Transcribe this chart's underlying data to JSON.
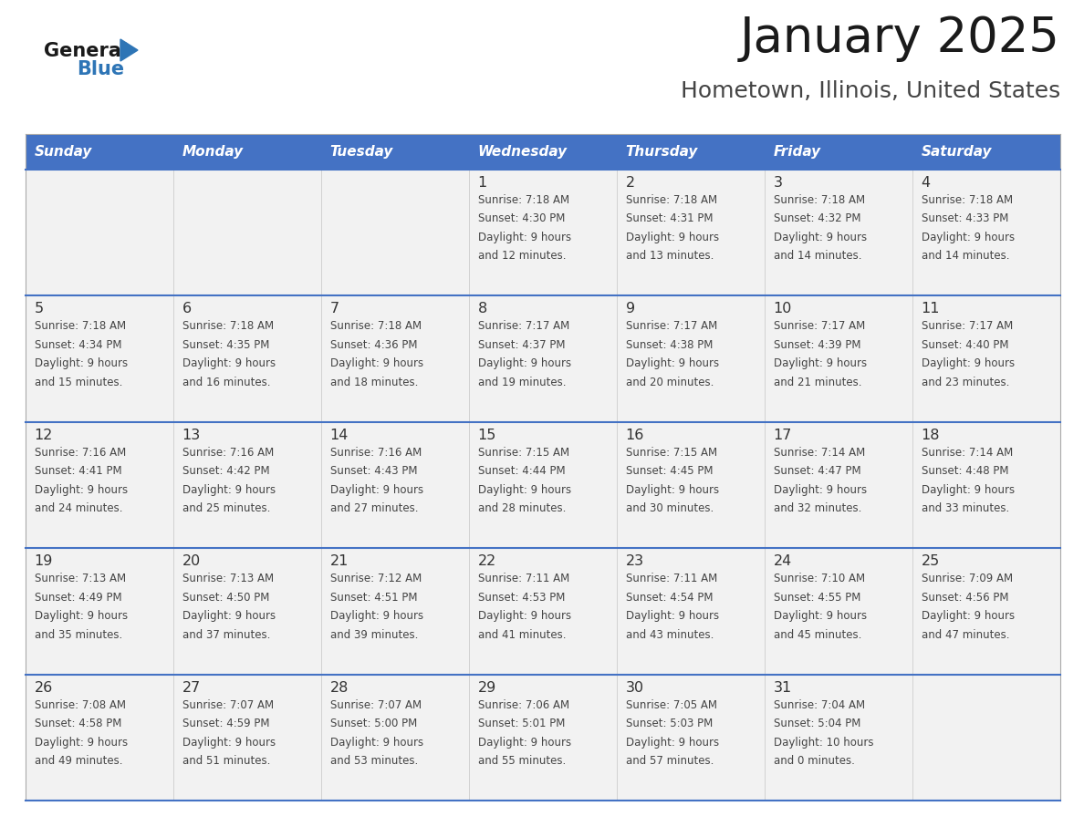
{
  "title": "January 2025",
  "subtitle": "Hometown, Illinois, United States",
  "header_bg_color": "#4472C4",
  "header_text_color": "#FFFFFF",
  "day_names": [
    "Sunday",
    "Monday",
    "Tuesday",
    "Wednesday",
    "Thursday",
    "Friday",
    "Saturday"
  ],
  "row_bg_color": "#F2F2F2",
  "grid_line_color": "#4472C4",
  "date_text_color": "#333333",
  "cell_text_color": "#444444",
  "title_color": "#1a1a1a",
  "subtitle_color": "#444444",
  "vert_line_color": "#CCCCCC",
  "weeks": [
    [
      {
        "date": "",
        "sunrise": "",
        "sunset": "",
        "daylight_line1": "",
        "daylight_line2": ""
      },
      {
        "date": "",
        "sunrise": "",
        "sunset": "",
        "daylight_line1": "",
        "daylight_line2": ""
      },
      {
        "date": "",
        "sunrise": "",
        "sunset": "",
        "daylight_line1": "",
        "daylight_line2": ""
      },
      {
        "date": "1",
        "sunrise": "7:18 AM",
        "sunset": "4:30 PM",
        "daylight_line1": "9 hours",
        "daylight_line2": "and 12 minutes."
      },
      {
        "date": "2",
        "sunrise": "7:18 AM",
        "sunset": "4:31 PM",
        "daylight_line1": "9 hours",
        "daylight_line2": "and 13 minutes."
      },
      {
        "date": "3",
        "sunrise": "7:18 AM",
        "sunset": "4:32 PM",
        "daylight_line1": "9 hours",
        "daylight_line2": "and 14 minutes."
      },
      {
        "date": "4",
        "sunrise": "7:18 AM",
        "sunset": "4:33 PM",
        "daylight_line1": "9 hours",
        "daylight_line2": "and 14 minutes."
      }
    ],
    [
      {
        "date": "5",
        "sunrise": "7:18 AM",
        "sunset": "4:34 PM",
        "daylight_line1": "9 hours",
        "daylight_line2": "and 15 minutes."
      },
      {
        "date": "6",
        "sunrise": "7:18 AM",
        "sunset": "4:35 PM",
        "daylight_line1": "9 hours",
        "daylight_line2": "and 16 minutes."
      },
      {
        "date": "7",
        "sunrise": "7:18 AM",
        "sunset": "4:36 PM",
        "daylight_line1": "9 hours",
        "daylight_line2": "and 18 minutes."
      },
      {
        "date": "8",
        "sunrise": "7:17 AM",
        "sunset": "4:37 PM",
        "daylight_line1": "9 hours",
        "daylight_line2": "and 19 minutes."
      },
      {
        "date": "9",
        "sunrise": "7:17 AM",
        "sunset": "4:38 PM",
        "daylight_line1": "9 hours",
        "daylight_line2": "and 20 minutes."
      },
      {
        "date": "10",
        "sunrise": "7:17 AM",
        "sunset": "4:39 PM",
        "daylight_line1": "9 hours",
        "daylight_line2": "and 21 minutes."
      },
      {
        "date": "11",
        "sunrise": "7:17 AM",
        "sunset": "4:40 PM",
        "daylight_line1": "9 hours",
        "daylight_line2": "and 23 minutes."
      }
    ],
    [
      {
        "date": "12",
        "sunrise": "7:16 AM",
        "sunset": "4:41 PM",
        "daylight_line1": "9 hours",
        "daylight_line2": "and 24 minutes."
      },
      {
        "date": "13",
        "sunrise": "7:16 AM",
        "sunset": "4:42 PM",
        "daylight_line1": "9 hours",
        "daylight_line2": "and 25 minutes."
      },
      {
        "date": "14",
        "sunrise": "7:16 AM",
        "sunset": "4:43 PM",
        "daylight_line1": "9 hours",
        "daylight_line2": "and 27 minutes."
      },
      {
        "date": "15",
        "sunrise": "7:15 AM",
        "sunset": "4:44 PM",
        "daylight_line1": "9 hours",
        "daylight_line2": "and 28 minutes."
      },
      {
        "date": "16",
        "sunrise": "7:15 AM",
        "sunset": "4:45 PM",
        "daylight_line1": "9 hours",
        "daylight_line2": "and 30 minutes."
      },
      {
        "date": "17",
        "sunrise": "7:14 AM",
        "sunset": "4:47 PM",
        "daylight_line1": "9 hours",
        "daylight_line2": "and 32 minutes."
      },
      {
        "date": "18",
        "sunrise": "7:14 AM",
        "sunset": "4:48 PM",
        "daylight_line1": "9 hours",
        "daylight_line2": "and 33 minutes."
      }
    ],
    [
      {
        "date": "19",
        "sunrise": "7:13 AM",
        "sunset": "4:49 PM",
        "daylight_line1": "9 hours",
        "daylight_line2": "and 35 minutes."
      },
      {
        "date": "20",
        "sunrise": "7:13 AM",
        "sunset": "4:50 PM",
        "daylight_line1": "9 hours",
        "daylight_line2": "and 37 minutes."
      },
      {
        "date": "21",
        "sunrise": "7:12 AM",
        "sunset": "4:51 PM",
        "daylight_line1": "9 hours",
        "daylight_line2": "and 39 minutes."
      },
      {
        "date": "22",
        "sunrise": "7:11 AM",
        "sunset": "4:53 PM",
        "daylight_line1": "9 hours",
        "daylight_line2": "and 41 minutes."
      },
      {
        "date": "23",
        "sunrise": "7:11 AM",
        "sunset": "4:54 PM",
        "daylight_line1": "9 hours",
        "daylight_line2": "and 43 minutes."
      },
      {
        "date": "24",
        "sunrise": "7:10 AM",
        "sunset": "4:55 PM",
        "daylight_line1": "9 hours",
        "daylight_line2": "and 45 minutes."
      },
      {
        "date": "25",
        "sunrise": "7:09 AM",
        "sunset": "4:56 PM",
        "daylight_line1": "9 hours",
        "daylight_line2": "and 47 minutes."
      }
    ],
    [
      {
        "date": "26",
        "sunrise": "7:08 AM",
        "sunset": "4:58 PM",
        "daylight_line1": "9 hours",
        "daylight_line2": "and 49 minutes."
      },
      {
        "date": "27",
        "sunrise": "7:07 AM",
        "sunset": "4:59 PM",
        "daylight_line1": "9 hours",
        "daylight_line2": "and 51 minutes."
      },
      {
        "date": "28",
        "sunrise": "7:07 AM",
        "sunset": "5:00 PM",
        "daylight_line1": "9 hours",
        "daylight_line2": "and 53 minutes."
      },
      {
        "date": "29",
        "sunrise": "7:06 AM",
        "sunset": "5:01 PM",
        "daylight_line1": "9 hours",
        "daylight_line2": "and 55 minutes."
      },
      {
        "date": "30",
        "sunrise": "7:05 AM",
        "sunset": "5:03 PM",
        "daylight_line1": "9 hours",
        "daylight_line2": "and 57 minutes."
      },
      {
        "date": "31",
        "sunrise": "7:04 AM",
        "sunset": "5:04 PM",
        "daylight_line1": "10 hours",
        "daylight_line2": "and 0 minutes."
      },
      {
        "date": "",
        "sunrise": "",
        "sunset": "",
        "daylight_line1": "",
        "daylight_line2": ""
      }
    ]
  ]
}
